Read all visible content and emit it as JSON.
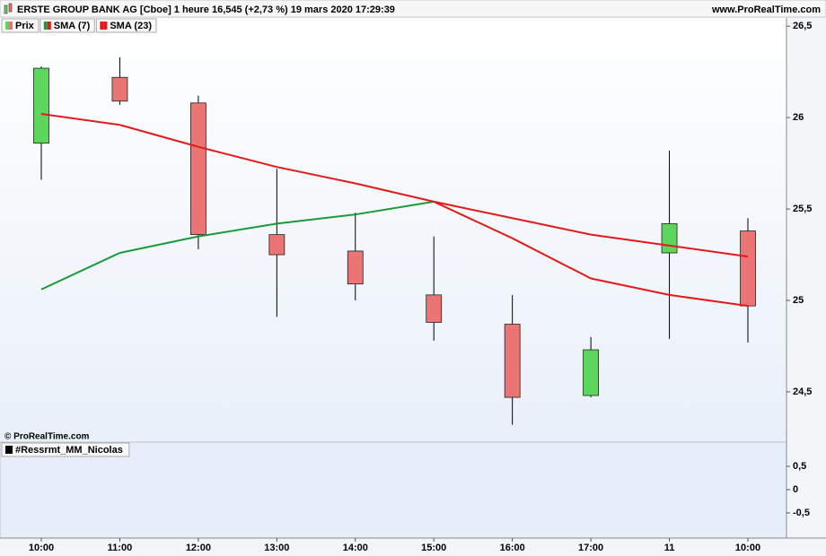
{
  "header": {
    "title": "ERSTE GROUP BANK AG [Cboe] 1 heure 16,545 (+2,73 %) 19 mars 2020 17:29:39",
    "website": "www.ProRealTime.com"
  },
  "watermark": "© ProRealTime.com",
  "chart_data": [
    {
      "type": "candlestick",
      "name": "Prix",
      "categories": [
        "10:00",
        "11:00",
        "12:00",
        "13:00",
        "14:00",
        "15:00",
        "16:00",
        "17:00",
        "11",
        "10:00"
      ],
      "open": [
        25.86,
        26.22,
        26.08,
        25.36,
        25.27,
        25.03,
        24.87,
        24.48,
        25.26,
        25.38
      ],
      "high": [
        26.28,
        26.33,
        26.12,
        25.72,
        25.48,
        25.35,
        25.03,
        24.8,
        25.82,
        25.45
      ],
      "low": [
        25.66,
        26.07,
        25.28,
        24.91,
        25.0,
        24.78,
        24.32,
        24.47,
        24.79,
        24.77
      ],
      "close": [
        26.27,
        26.09,
        25.36,
        25.25,
        25.09,
        24.88,
        24.47,
        24.73,
        25.42,
        24.97
      ],
      "up_color": "#5cd65c",
      "down_color": "#eb7474",
      "series": [
        {
          "name": "SMA (7)",
          "up_color": "#1a9a3a",
          "down_color": "#e31a1a",
          "values": [
            25.06,
            25.26,
            25.35,
            25.42,
            25.47,
            25.54,
            25.34,
            25.12,
            25.03,
            24.97
          ]
        },
        {
          "name": "SMA (23)",
          "color": "#e31a1a",
          "values": [
            26.02,
            25.96,
            25.84,
            25.73,
            25.64,
            25.54,
            25.45,
            25.36,
            25.3,
            25.24
          ]
        }
      ],
      "ylim": [
        24.23,
        26.545
      ],
      "yticks": [
        {
          "value": 24.5,
          "label": "24,5"
        },
        25,
        {
          "value": 25.5,
          "label": "25,5"
        },
        26,
        {
          "value": 26.5,
          "label": "26,5"
        }
      ]
    },
    {
      "type": "indicator",
      "name": "#Ressrmt_MM_Nicolas",
      "ylim": [
        -1.04,
        1.02
      ],
      "yticks": [
        {
          "value": -0.5,
          "label": "-0,5"
        },
        0,
        {
          "value": 0.5,
          "label": "0,5"
        }
      ]
    }
  ]
}
